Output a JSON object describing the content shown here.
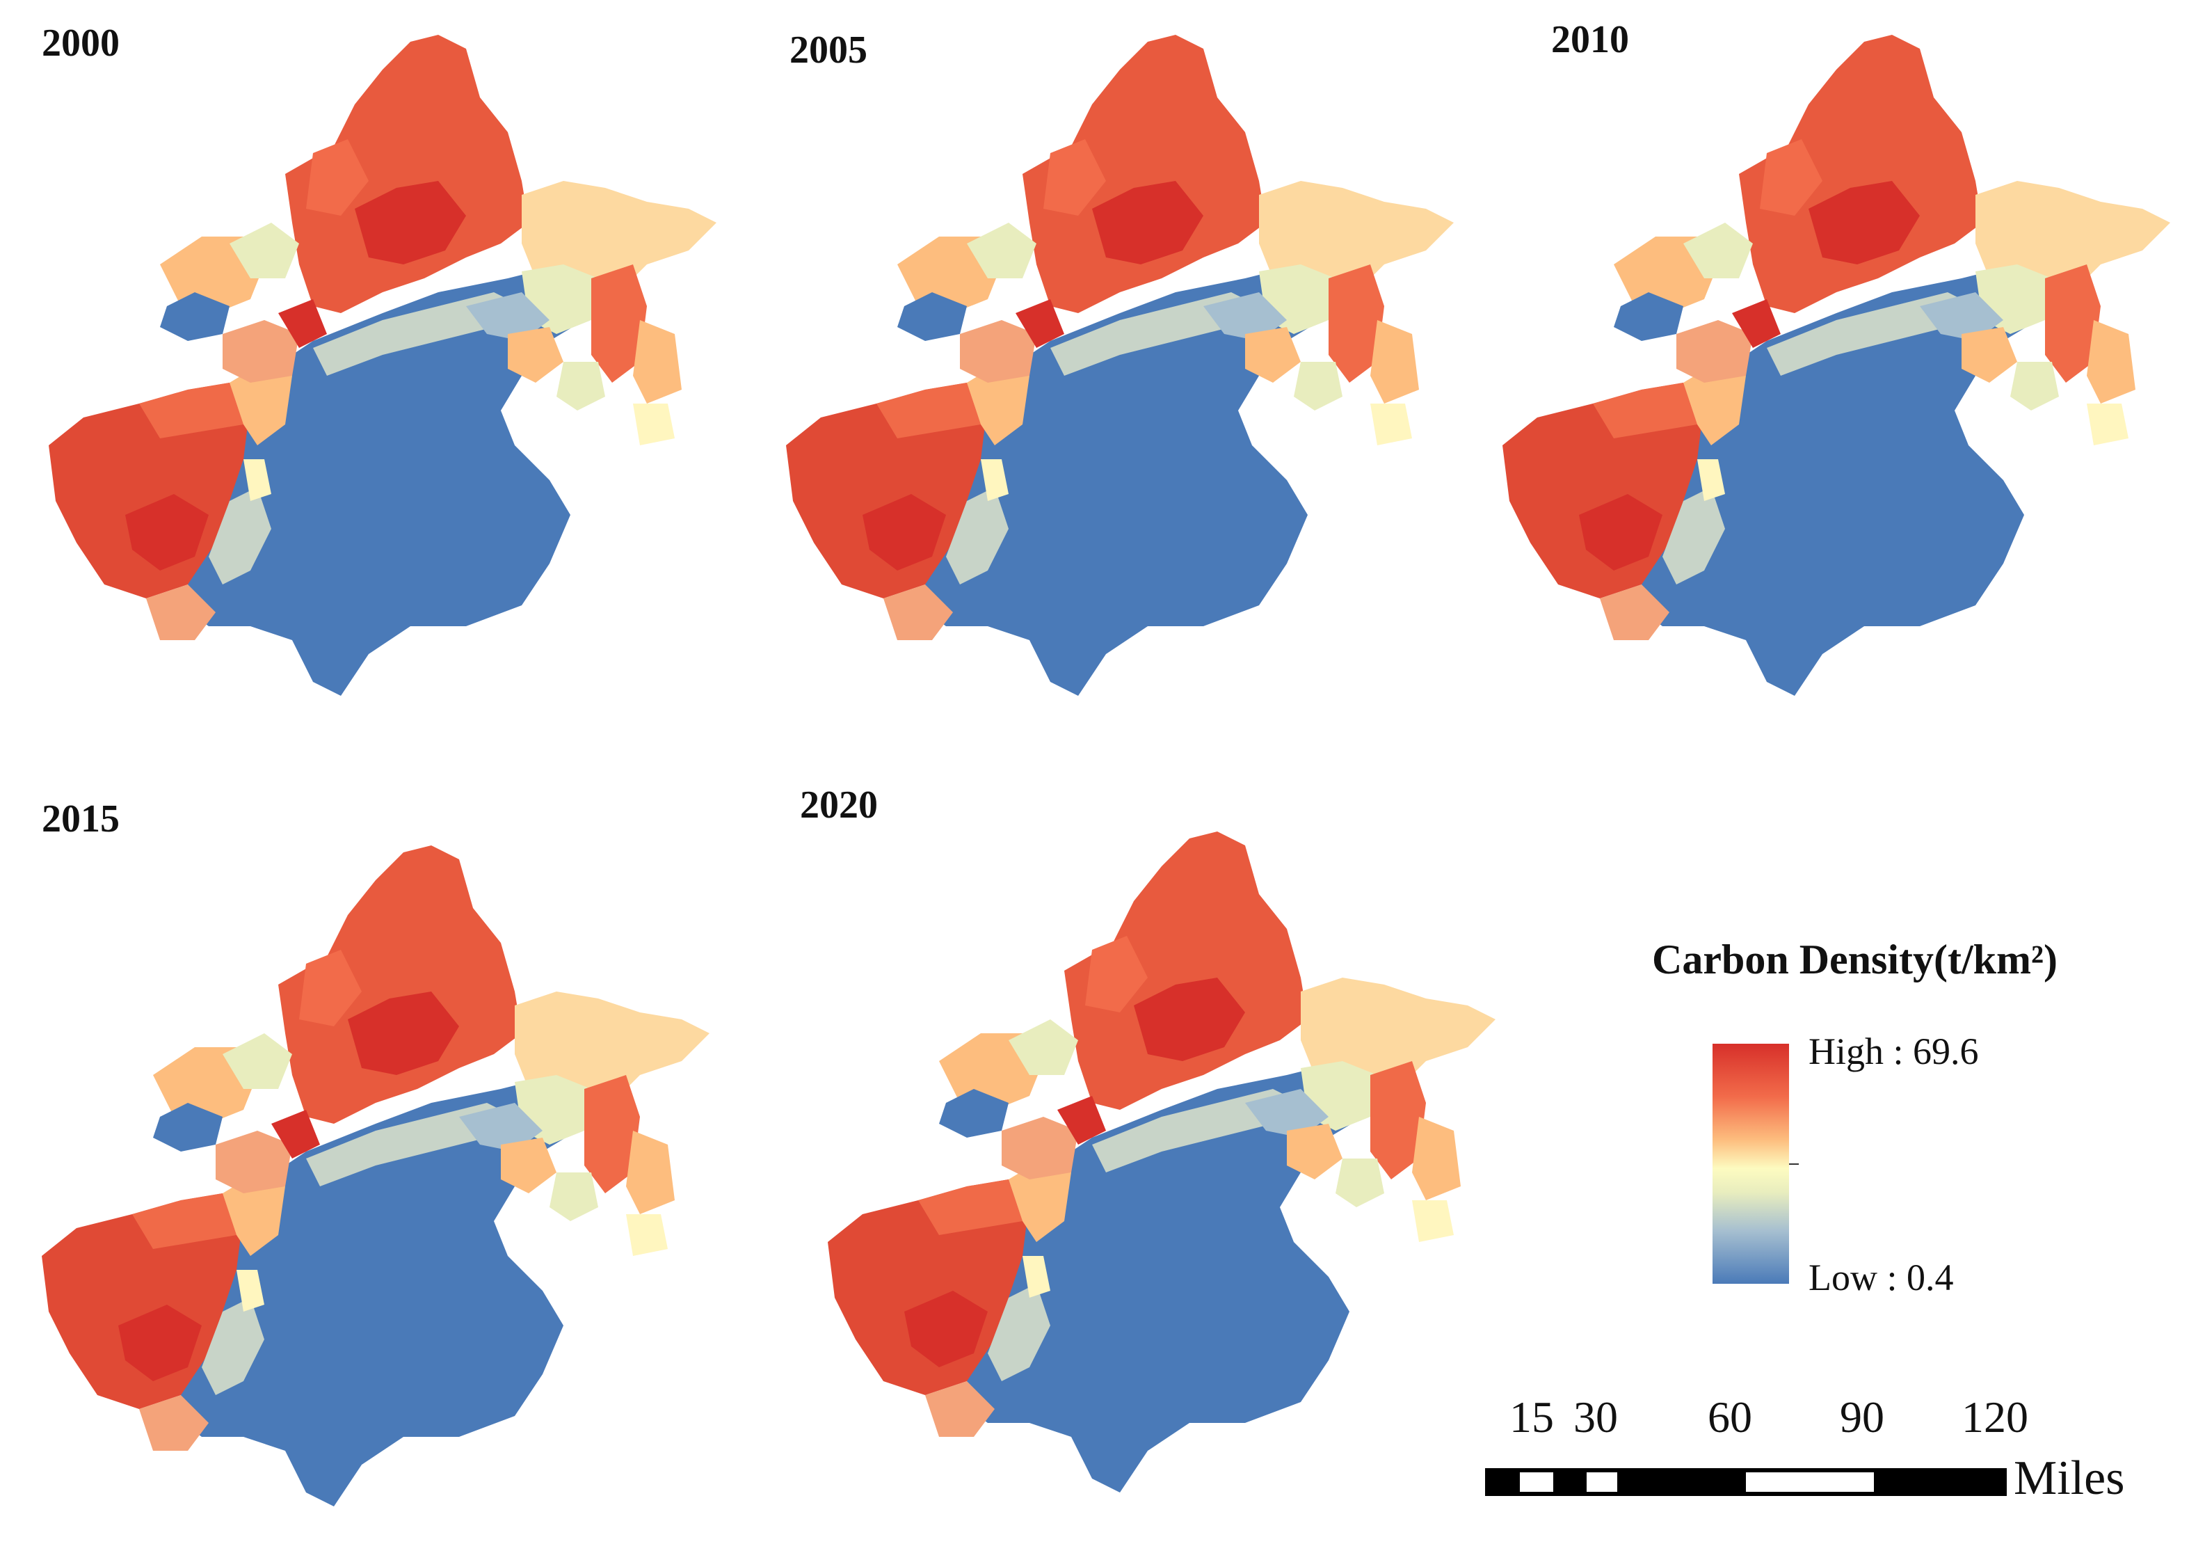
{
  "panels": [
    {
      "year": "2000"
    },
    {
      "year": "2005"
    },
    {
      "year": "2010"
    },
    {
      "year": "2015"
    },
    {
      "year": "2020"
    }
  ],
  "legend": {
    "title": "Carbon Density(t/km²)",
    "high_label": "High : 69.6",
    "low_label": "Low : 0.4",
    "high_value": 69.6,
    "low_value": 0.4,
    "colors": {
      "high": "#d7302a",
      "mid": "#fdfbc0",
      "low": "#4a7ab8"
    }
  },
  "scale_bar": {
    "ticks": [
      "15",
      "30",
      "60",
      "90",
      "120"
    ],
    "unit": "Miles"
  }
}
